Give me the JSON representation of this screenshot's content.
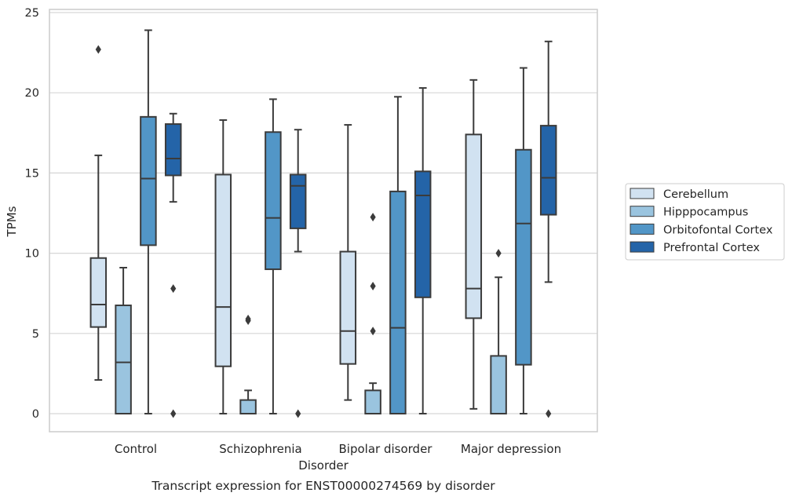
{
  "chart_data": {
    "type": "box",
    "title": "",
    "caption": "Transcript expression for ENST00000274569 by disorder",
    "xlabel": "Disorder",
    "ylabel": "TPMs",
    "ylim": [
      -1.1,
      25.3
    ],
    "yticks": [
      0,
      5,
      10,
      15,
      20,
      25
    ],
    "grid": true,
    "legend_position": "right",
    "categories": [
      "Control",
      "Schizophrenia",
      "Bipolar disorder",
      "Major depression"
    ],
    "series": [
      {
        "name": "Cerebellum",
        "color": "#d1e2f1",
        "boxes": [
          {
            "whislo": 2.1,
            "q1": 5.4,
            "med": 6.8,
            "q3": 9.7,
            "whishi": 16.1,
            "fliers": [
              22.7
            ]
          },
          {
            "whislo": 0.0,
            "q1": 2.95,
            "med": 6.65,
            "q3": 14.9,
            "whishi": 18.3,
            "fliers": []
          },
          {
            "whislo": 0.85,
            "q1": 3.1,
            "med": 5.15,
            "q3": 10.1,
            "whishi": 18.0,
            "fliers": []
          },
          {
            "whislo": 0.3,
            "q1": 5.95,
            "med": 7.8,
            "q3": 17.4,
            "whishi": 20.8,
            "fliers": []
          }
        ]
      },
      {
        "name": "Hipppocampus",
        "color": "#9ac4df",
        "boxes": [
          {
            "whislo": 0.0,
            "q1": 0.0,
            "med": 3.2,
            "q3": 6.75,
            "whishi": 9.1,
            "fliers": []
          },
          {
            "whislo": 0.0,
            "q1": 0.0,
            "med": 0.0,
            "q3": 0.85,
            "whishi": 1.45,
            "fliers": [
              5.8,
              5.9
            ]
          },
          {
            "whislo": 0.0,
            "q1": 0.0,
            "med": 0.0,
            "q3": 1.45,
            "whishi": 1.9,
            "fliers": [
              5.15,
              7.95,
              12.25
            ]
          },
          {
            "whislo": 0.0,
            "q1": 0.0,
            "med": 0.0,
            "q3": 3.6,
            "whishi": 8.5,
            "fliers": [
              10.0
            ]
          }
        ]
      },
      {
        "name": "Orbitofontal Cortex",
        "color": "#5296c7",
        "boxes": [
          {
            "whislo": 0.0,
            "q1": 10.5,
            "med": 14.65,
            "q3": 18.5,
            "whishi": 23.9,
            "fliers": []
          },
          {
            "whislo": 0.0,
            "q1": 9.0,
            "med": 12.2,
            "q3": 17.55,
            "whishi": 19.6,
            "fliers": []
          },
          {
            "whislo": 0.0,
            "q1": 0.0,
            "med": 5.35,
            "q3": 13.85,
            "whishi": 19.75,
            "fliers": []
          },
          {
            "whislo": 0.0,
            "q1": 3.05,
            "med": 11.85,
            "q3": 16.45,
            "whishi": 21.55,
            "fliers": []
          }
        ]
      },
      {
        "name": "Prefrontal Cortex",
        "color": "#2464a8",
        "boxes": [
          {
            "whislo": 13.2,
            "q1": 14.85,
            "med": 15.9,
            "q3": 18.05,
            "whishi": 18.7,
            "fliers": [
              7.8,
              0.0
            ]
          },
          {
            "whislo": 10.1,
            "q1": 11.55,
            "med": 14.2,
            "q3": 14.9,
            "whishi": 17.7,
            "fliers": [
              0.0
            ]
          },
          {
            "whislo": 0.0,
            "q1": 7.25,
            "med": 13.6,
            "q3": 15.1,
            "whishi": 20.3,
            "fliers": []
          },
          {
            "whislo": 8.2,
            "q1": 12.4,
            "med": 14.7,
            "q3": 17.95,
            "whishi": 23.2,
            "fliers": [
              0.0
            ]
          }
        ]
      }
    ]
  }
}
